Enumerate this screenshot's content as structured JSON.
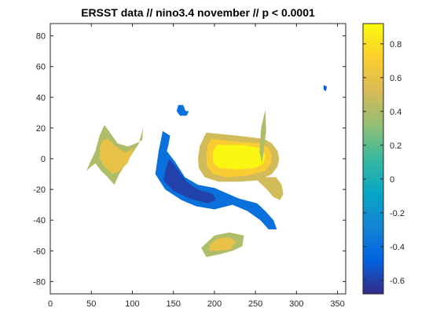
{
  "chart_data": {
    "type": "heatmap",
    "title": "ERSST data // nino3.4 november // p < 0.0001",
    "xlabel": "",
    "ylabel": "",
    "xlim": [
      0,
      360
    ],
    "ylim": [
      -88,
      88
    ],
    "x_ticks": [
      "0",
      "50",
      "100",
      "150",
      "200",
      "250",
      "300",
      "350"
    ],
    "y_ticks": [
      "80",
      "60",
      "40",
      "20",
      "0",
      "-20",
      "-40",
      "-60",
      "-80"
    ],
    "colorbar": {
      "range": [
        -0.68,
        0.92
      ],
      "ticks": [
        "0.8",
        "0.6",
        "0.4",
        "0.2",
        "0",
        "-0.2",
        "-0.4",
        "-0.6"
      ],
      "colormap": [
        "#352a87",
        "#0363e1",
        "#1485d4",
        "#06a7c6",
        "#38b99e",
        "#92bf73",
        "#d9ba56",
        "#fcce2e",
        "#f9fb0e"
      ]
    },
    "regions": [
      {
        "name": "equatorial-pacific-warm-tongue",
        "sign": "positive",
        "contours": [
          {
            "value": 0.5,
            "points": [
              [
                190,
                17
              ],
              [
                228,
                15
              ],
              [
                260,
                13
              ],
              [
                270,
                10
              ],
              [
                277,
                5
              ],
              [
                279,
                0
              ],
              [
                277,
                -5
              ],
              [
                270,
                -10
              ],
              [
                255,
                -14
              ],
              [
                230,
                -15
              ],
              [
                205,
                -15
              ],
              [
                188,
                -12
              ],
              [
                181,
                -6
              ],
              [
                180,
                0
              ],
              [
                182,
                8
              ]
            ]
          },
          {
            "value": 0.7,
            "points": [
              [
                196,
                13
              ],
              [
                228,
                11
              ],
              [
                258,
                10
              ],
              [
                266,
                7
              ],
              [
                270,
                3
              ],
              [
                269,
                -3
              ],
              [
                262,
                -8
              ],
              [
                240,
                -11
              ],
              [
                215,
                -12
              ],
              [
                198,
                -10
              ],
              [
                191,
                -5
              ],
              [
                190,
                2
              ],
              [
                192,
                9
              ]
            ]
          },
          {
            "value": 0.9,
            "points": [
              [
                203,
                9
              ],
              [
                235,
                9
              ],
              [
                255,
                7
              ],
              [
                262,
                3
              ],
              [
                260,
                -3
              ],
              [
                250,
                -6
              ],
              [
                228,
                -7
              ],
              [
                205,
                -6
              ],
              [
                198,
                -2
              ],
              [
                198,
                5
              ]
            ]
          }
        ]
      },
      {
        "name": "east-pacific-coastal-warm-extension",
        "sign": "positive",
        "contours": [
          {
            "value": 0.5,
            "points": [
              [
                250,
                -13
              ],
              [
                262,
                -12
              ],
              [
                275,
                -12
              ],
              [
                282,
                -17
              ],
              [
                284,
                -23
              ],
              [
                280,
                -27
              ],
              [
                272,
                -25
              ],
              [
                264,
                -20
              ],
              [
                256,
                -16
              ]
            ]
          },
          {
            "value": 0.4,
            "points": [
              [
                258,
                -3
              ],
              [
                263,
                18
              ],
              [
                262,
                32
              ],
              [
                257,
                20
              ],
              [
                255,
                5
              ]
            ]
          }
        ]
      },
      {
        "name": "indian-ocean-warm-patch",
        "sign": "positive",
        "contours": [
          {
            "value": 0.4,
            "points": [
              [
                60,
                15
              ],
              [
                66,
                22
              ],
              [
                74,
                16
              ],
              [
                82,
                10
              ],
              [
                95,
                8
              ],
              [
                104,
                10
              ],
              [
                112,
                12
              ],
              [
                113,
                20
              ],
              [
                108,
                10
              ],
              [
                96,
                0
              ],
              [
                84,
                -10
              ],
              [
                78,
                -17
              ],
              [
                70,
                -12
              ],
              [
                62,
                -8
              ],
              [
                55,
                -3
              ],
              [
                50,
                -5
              ],
              [
                44,
                -8
              ],
              [
                48,
                -3
              ],
              [
                55,
                5
              ]
            ]
          },
          {
            "value": 0.6,
            "points": [
              [
                64,
                12
              ],
              [
                70,
                13
              ],
              [
                80,
                8
              ],
              [
                92,
                4
              ],
              [
                102,
                7
              ],
              [
                94,
                -3
              ],
              [
                84,
                -8
              ],
              [
                76,
                -10
              ],
              [
                66,
                -5
              ],
              [
                60,
                0
              ],
              [
                60,
                7
              ]
            ]
          }
        ]
      },
      {
        "name": "southeast-pacific-warm-patch",
        "sign": "positive",
        "contours": [
          {
            "value": 0.4,
            "points": [
              [
                190,
                -55
              ],
              [
                200,
                -50
              ],
              [
                218,
                -48
              ],
              [
                236,
                -50
              ],
              [
                234,
                -57
              ],
              [
                222,
                -60
              ],
              [
                208,
                -62
              ],
              [
                190,
                -64
              ],
              [
                184,
                -58
              ]
            ]
          },
          {
            "value": 0.6,
            "points": [
              [
                194,
                -56
              ],
              [
                204,
                -52
              ],
              [
                218,
                -51
              ],
              [
                226,
                -54
              ],
              [
                220,
                -59
              ],
              [
                206,
                -60
              ],
              [
                194,
                -60
              ]
            ]
          }
        ]
      },
      {
        "name": "west-pacific-cold-boomerang",
        "sign": "negative",
        "contours": [
          {
            "value": -0.4,
            "points": [
              [
                142,
                5
              ],
              [
                152,
                -2
              ],
              [
                164,
                -12
              ],
              [
                180,
                -17
              ],
              [
                200,
                -19
              ],
              [
                230,
                -26
              ],
              [
                252,
                -29
              ],
              [
                262,
                -34
              ],
              [
                272,
                -40
              ],
              [
                276,
                -46
              ],
              [
                266,
                -46
              ],
              [
                256,
                -40
              ],
              [
                240,
                -34
              ],
              [
                222,
                -30
              ],
              [
                200,
                -33
              ],
              [
                178,
                -31
              ],
              [
                160,
                -27
              ],
              [
                140,
                -20
              ],
              [
                128,
                -10
              ],
              [
                132,
                5
              ],
              [
                137,
                18
              ],
              [
                146,
                15
              ],
              [
                144,
                9
              ]
            ]
          },
          {
            "value": -0.6,
            "points": [
              [
                145,
                0
              ],
              [
                154,
                -6
              ],
              [
                166,
                -15
              ],
              [
                180,
                -20
              ],
              [
                198,
                -23
              ],
              [
                202,
                -27
              ],
              [
                192,
                -29
              ],
              [
                170,
                -26
              ],
              [
                150,
                -21
              ],
              [
                138,
                -14
              ],
              [
                140,
                -8
              ]
            ]
          }
        ]
      },
      {
        "name": "north-pacific-cold-patch",
        "sign": "negative",
        "contours": [
          {
            "value": -0.4,
            "points": [
              [
                156,
                35
              ],
              [
                162,
                35
              ],
              [
                165,
                31
              ],
              [
                169,
                31
              ],
              [
                166,
                28
              ],
              [
                158,
                28
              ],
              [
                154,
                31
              ]
            ]
          }
        ]
      },
      {
        "name": "north-atlantic-cold-speck",
        "sign": "negative",
        "contours": [
          {
            "value": -0.5,
            "points": [
              [
                333,
                48
              ],
              [
                337,
                47
              ],
              [
                336,
                44
              ],
              [
                333,
                45
              ]
            ]
          }
        ]
      }
    ]
  }
}
